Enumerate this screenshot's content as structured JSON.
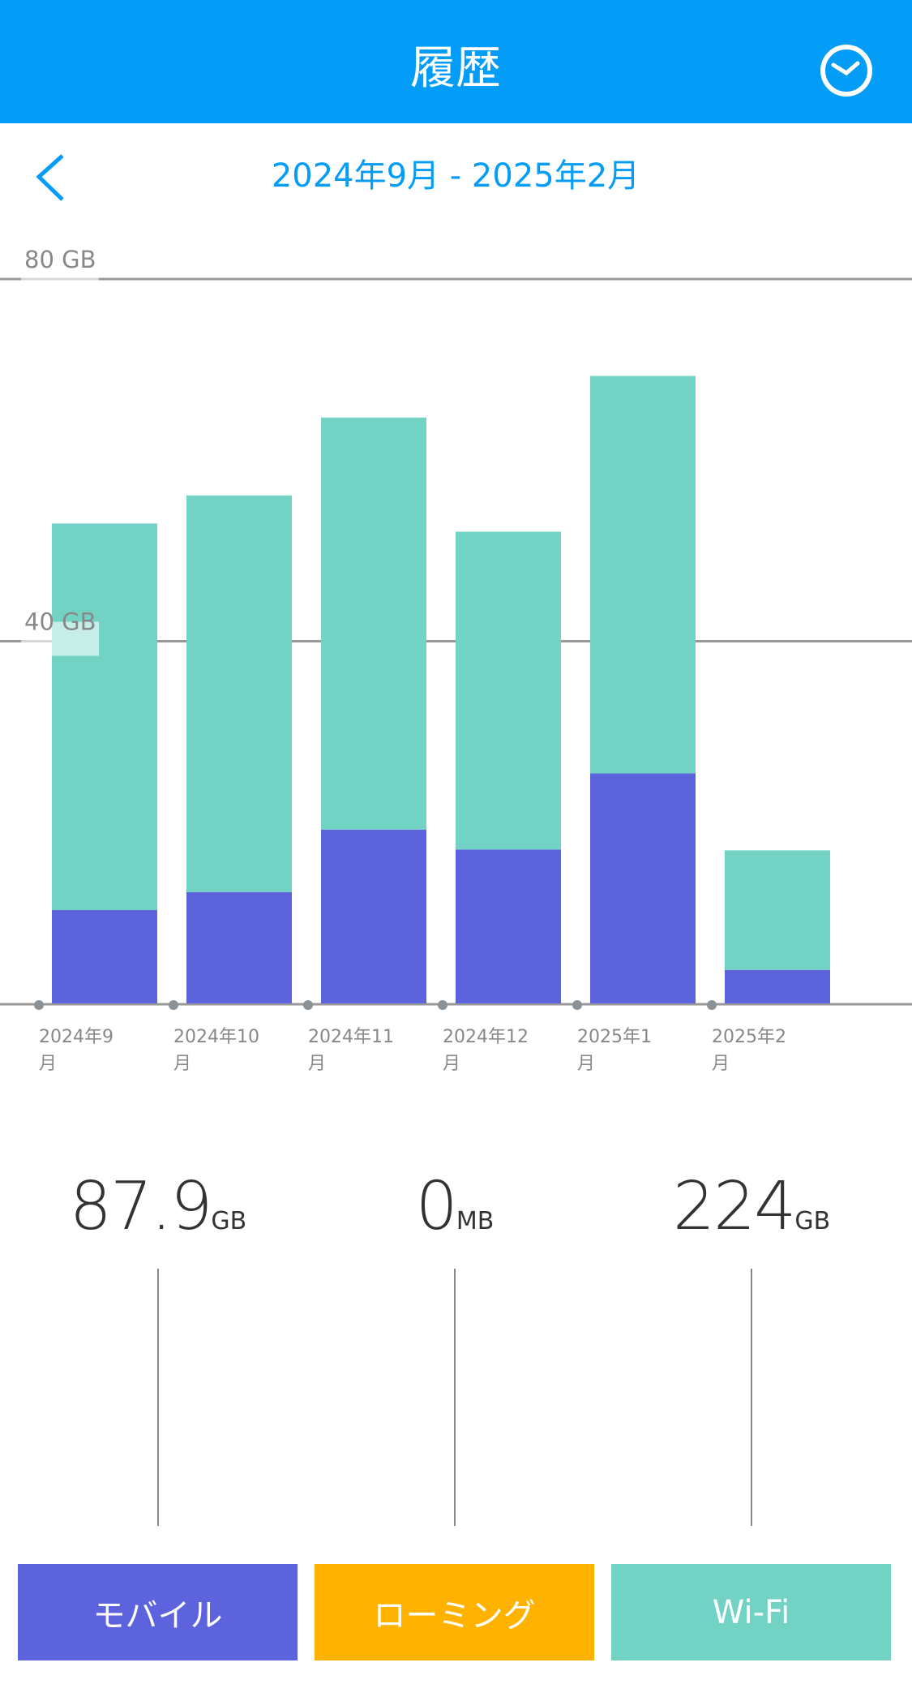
{
  "header": {
    "title": "履歴"
  },
  "date_range": "2024年9月 - 2025年2月",
  "chart_data": {
    "type": "bar",
    "stacked": true,
    "categories": [
      "2024年9月",
      "2024年10月",
      "2024年11月",
      "2024年12月",
      "2025年1月",
      "2025年2月"
    ],
    "series": [
      {
        "name": "モバイル",
        "color": "#5c63dc",
        "values": [
          10.3,
          12.3,
          19.2,
          17.0,
          25.4,
          3.7
        ]
      },
      {
        "name": "ローミング",
        "color": "#ffb300",
        "values": [
          0,
          0,
          0,
          0,
          0,
          0
        ]
      },
      {
        "name": "Wi-Fi",
        "color": "#72d3c5",
        "values": [
          42.7,
          43.8,
          45.5,
          35.1,
          43.9,
          13.2
        ]
      }
    ],
    "ylim": [
      0,
      80
    ],
    "yticks": [
      {
        "value": 40,
        "label": "40 GB"
      },
      {
        "value": 80,
        "label": "80 GB"
      }
    ],
    "grid": true
  },
  "totals": [
    {
      "value": 87.9,
      "unit": "GB"
    },
    {
      "value": 0,
      "unit": "MB"
    },
    {
      "value": 224,
      "unit": "GB"
    }
  ]
}
